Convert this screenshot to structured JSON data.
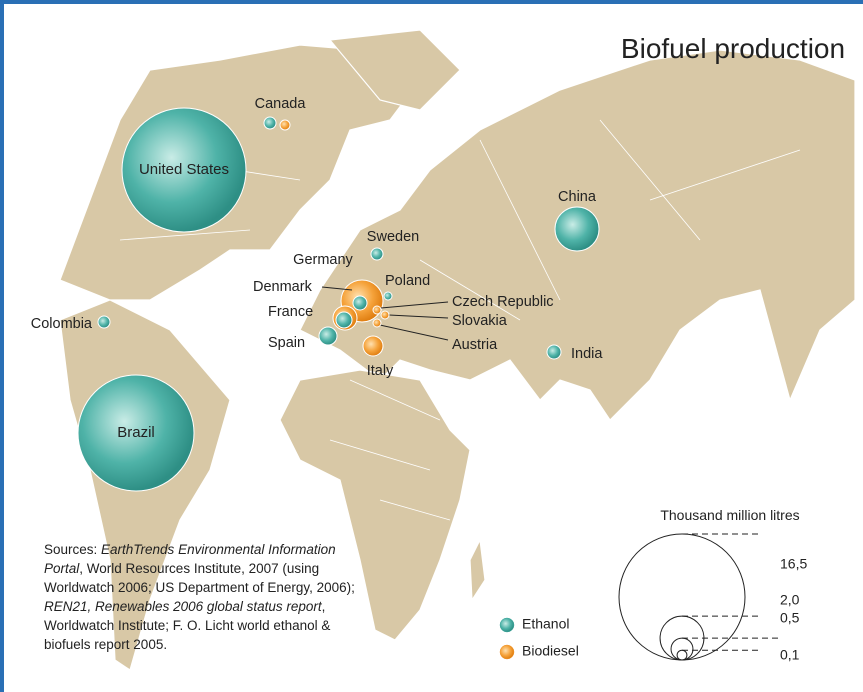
{
  "title": "Biofuel production",
  "countries": [
    {
      "name": "United States",
      "fuel": "ethanol"
    },
    {
      "name": "Brazil",
      "fuel": "ethanol"
    },
    {
      "name": "China",
      "fuel": "ethanol"
    },
    {
      "name": "Canada",
      "fuel": "both"
    },
    {
      "name": "Colombia",
      "fuel": "ethanol"
    },
    {
      "name": "Sweden",
      "fuel": "ethanol"
    },
    {
      "name": "Germany",
      "fuel": "both"
    },
    {
      "name": "Poland",
      "fuel": "ethanol"
    },
    {
      "name": "Denmark",
      "fuel": "biodiesel"
    },
    {
      "name": "France",
      "fuel": "both"
    },
    {
      "name": "Czech Republic",
      "fuel": "biodiesel"
    },
    {
      "name": "Slovakia",
      "fuel": "biodiesel"
    },
    {
      "name": "Austria",
      "fuel": "biodiesel"
    },
    {
      "name": "Spain",
      "fuel": "ethanol"
    },
    {
      "name": "Italy",
      "fuel": "biodiesel"
    },
    {
      "name": "India",
      "fuel": "ethanol"
    }
  ],
  "legend": {
    "title": "Thousand million litres",
    "sizes": [
      {
        "value": 16.5,
        "label": "16,5"
      },
      {
        "value": 2.0,
        "label": "2,0"
      },
      {
        "value": 0.5,
        "label": "0,5"
      },
      {
        "value": 0.1,
        "label": "0,1"
      }
    ],
    "fuels": [
      {
        "name": "Ethanol",
        "color": "#3fa89c"
      },
      {
        "name": "Biodiesel",
        "color": "#f2962a"
      }
    ]
  },
  "sources": [
    {
      "text": "Sources: ",
      "italic": false
    },
    {
      "text": "EarthTrends Environmental Information Portal",
      "italic": true
    },
    {
      "text": ", World Resources Institute, 2007 (using Worldwatch 2006; US Department of Energy, 2006); ",
      "italic": false
    },
    {
      "text": "REN21, Renewables 2006 global status report",
      "italic": true
    },
    {
      "text": ", Worldwatch Institute;  F. O. Licht world ethanol & biofuels report 2005.",
      "italic": false
    }
  ]
}
